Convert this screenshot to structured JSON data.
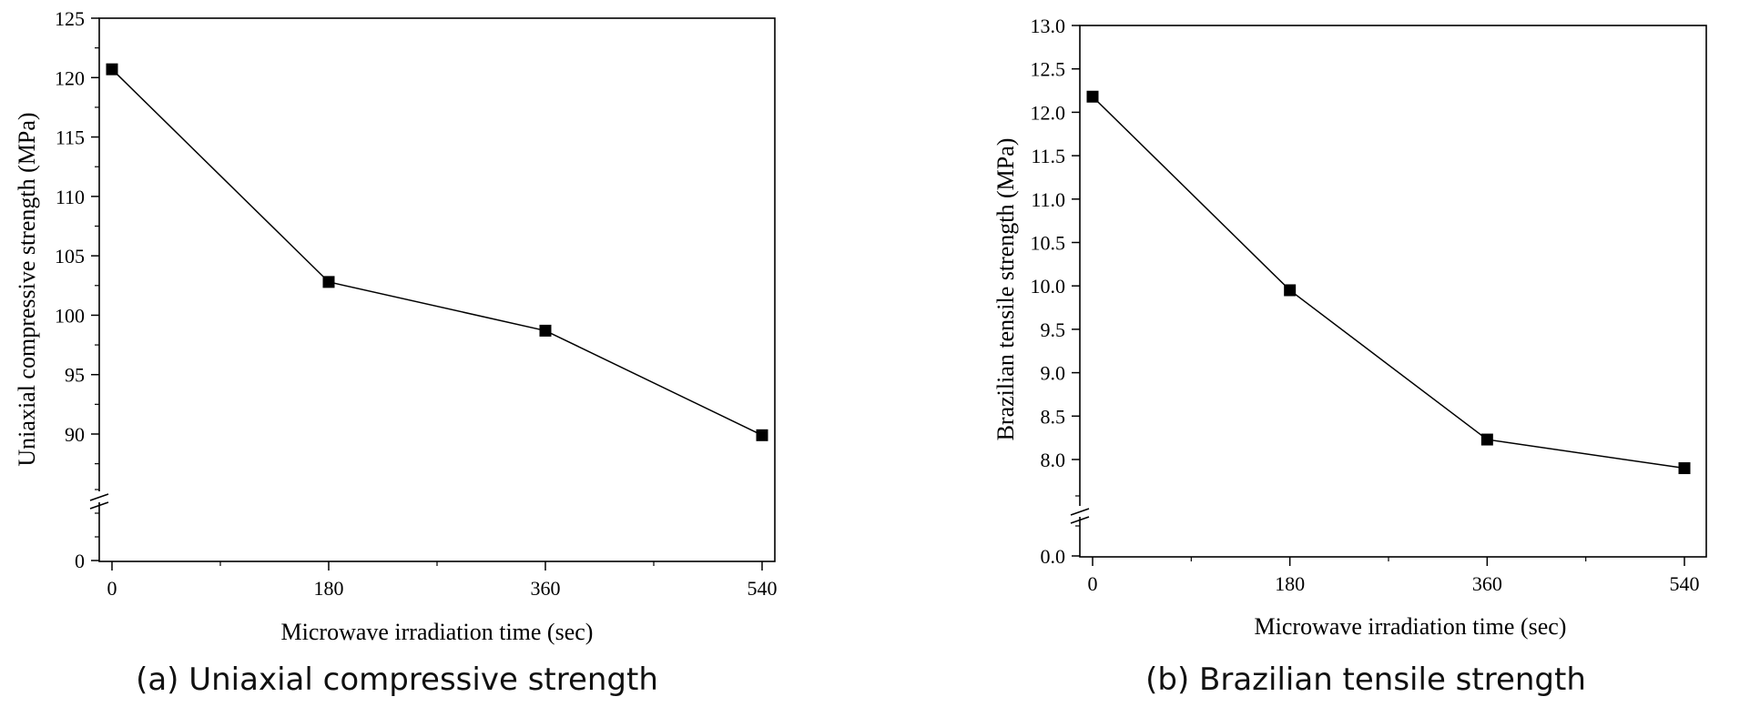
{
  "chart_data": [
    {
      "type": "line",
      "caption": "(a) Uniaxial compressive strength",
      "xlabel": "Microwave irradiation time (sec)",
      "ylabel": "Uniaxial compressive strength (MPa)",
      "x": [
        0,
        180,
        360,
        540
      ],
      "series": [
        {
          "values": [
            120.7,
            102.8,
            98.7,
            89.9
          ],
          "color": "#000000",
          "marker": "square"
        }
      ],
      "xticks": [
        "0",
        "180",
        "360",
        "540"
      ],
      "xlim": [
        -10,
        550
      ],
      "yticks_major": [
        "125",
        "120",
        "115",
        "110",
        "105",
        "100",
        "95",
        "90"
      ],
      "yticks_below_break": [
        "0"
      ],
      "ylim": [
        0,
        125
      ],
      "axis_break": true,
      "grid": false
    },
    {
      "type": "line",
      "caption": "(b) Brazilian tensile strength",
      "xlabel": "Microwave irradiation time (sec)",
      "ylabel": "Brazilian tensile strength (MPa)",
      "x": [
        0,
        180,
        360,
        540
      ],
      "series": [
        {
          "values": [
            12.18,
            9.95,
            8.23,
            7.9
          ],
          "color": "#000000",
          "marker": "square"
        }
      ],
      "xticks": [
        "0",
        "180",
        "360",
        "540"
      ],
      "xlim": [
        -10,
        560
      ],
      "yticks_major": [
        "13.0",
        "12.5",
        "12.0",
        "11.5",
        "11.0",
        "10.5",
        "10.0",
        "9.5",
        "9.0",
        "8.5",
        "8.0"
      ],
      "yticks_below_break": [
        "0.0"
      ],
      "ylim": [
        0,
        13.0
      ],
      "axis_break": true,
      "grid": false
    }
  ]
}
